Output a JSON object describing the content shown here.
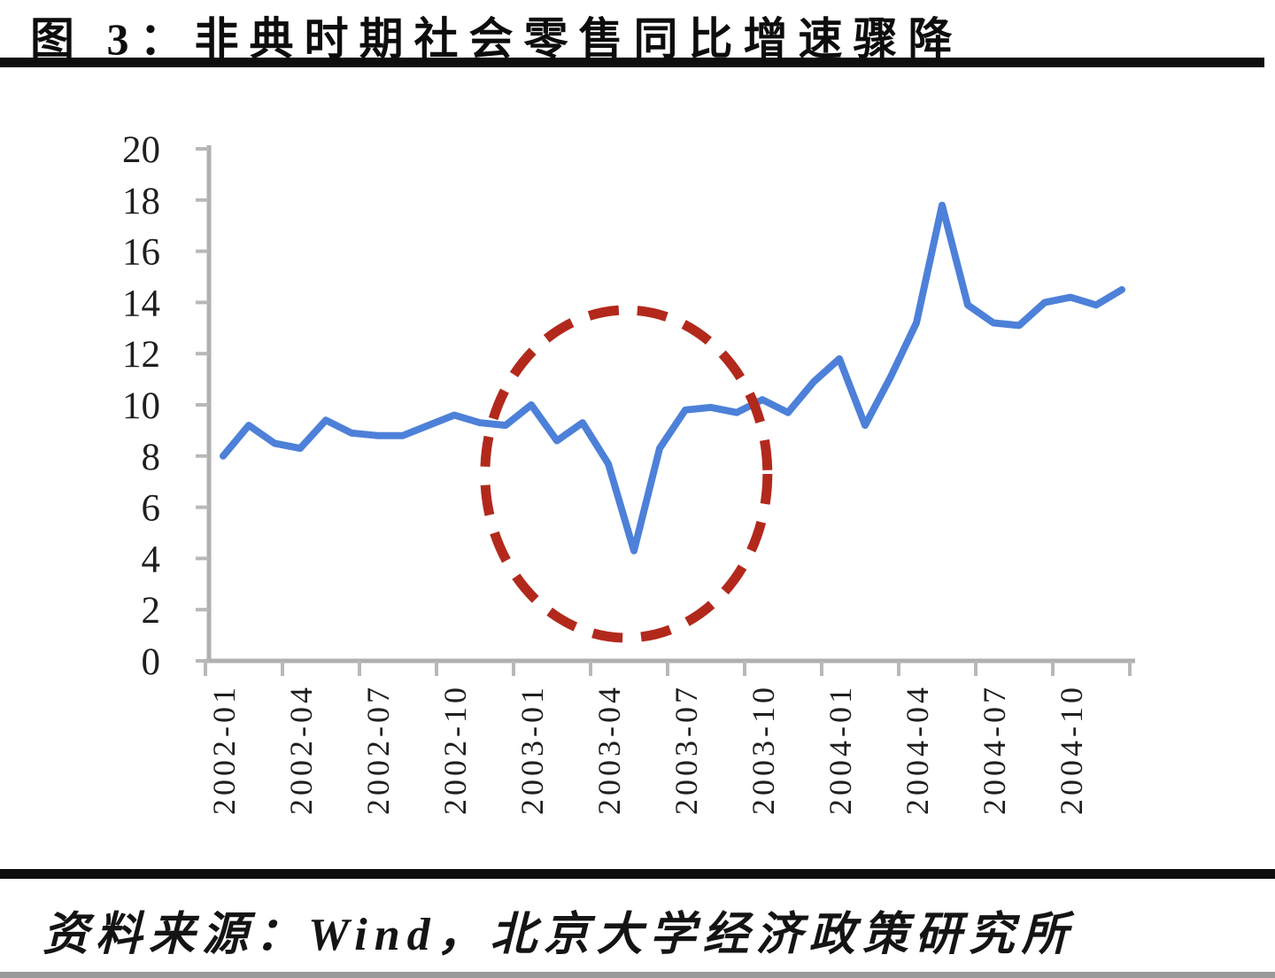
{
  "header": {
    "title": "图 3：非典时期社会零售同比增速骤降"
  },
  "footer": {
    "source": "资料来源：Wind，北京大学经济政策研究所"
  },
  "colors": {
    "line": "#4d80d8",
    "annotation": "#b2291c",
    "axis": "#b0b0b0",
    "tick": "#b8b8b8",
    "label": "#1f1f1f",
    "rule": "#0e0e0e",
    "strip": "#9a9a9a",
    "background": "#ffffff"
  },
  "chart_data": {
    "type": "line",
    "title": "图 3：非典时期社会零售同比增速骤降",
    "xlabel": "",
    "ylabel": "",
    "grid": false,
    "legend": null,
    "ylim": [
      0,
      20
    ],
    "y_ticks": [
      0,
      2,
      4,
      6,
      8,
      10,
      12,
      14,
      16,
      18,
      20
    ],
    "x": [
      "2002-01",
      "2002-02",
      "2002-03",
      "2002-04",
      "2002-05",
      "2002-06",
      "2002-07",
      "2002-08",
      "2002-09",
      "2002-10",
      "2002-11",
      "2002-12",
      "2003-01",
      "2003-02",
      "2003-03",
      "2003-04",
      "2003-05",
      "2003-06",
      "2003-07",
      "2003-08",
      "2003-09",
      "2003-10",
      "2003-11",
      "2003-12",
      "2004-01",
      "2004-02",
      "2004-03",
      "2004-04",
      "2004-05",
      "2004-06",
      "2004-07",
      "2004-08",
      "2004-09",
      "2004-10",
      "2004-11",
      "2004-12"
    ],
    "values": [
      8.0,
      9.2,
      8.5,
      8.3,
      9.4,
      8.9,
      8.8,
      8.8,
      9.2,
      9.6,
      9.3,
      9.2,
      10.0,
      8.6,
      9.3,
      7.7,
      4.3,
      8.3,
      9.8,
      9.9,
      9.7,
      10.2,
      9.7,
      10.9,
      11.8,
      9.2,
      11.1,
      13.2,
      17.8,
      13.9,
      13.2,
      13.1,
      14.0,
      14.2,
      13.9,
      14.5
    ],
    "x_tick_labels": [
      "2002-01",
      "2002-04",
      "2002-07",
      "2002-10",
      "2003-01",
      "2003-04",
      "2003-07",
      "2003-10",
      "2004-01",
      "2004-04",
      "2004-07",
      "2004-10"
    ],
    "annotation": {
      "shape": "dashed-ellipse",
      "meaning": "SARS-period dip highlight",
      "center_month": "2003-05",
      "center_month_index": 15.7,
      "center_value": 7.3,
      "rx_months": 5.5,
      "ry_units": 6.4
    }
  }
}
